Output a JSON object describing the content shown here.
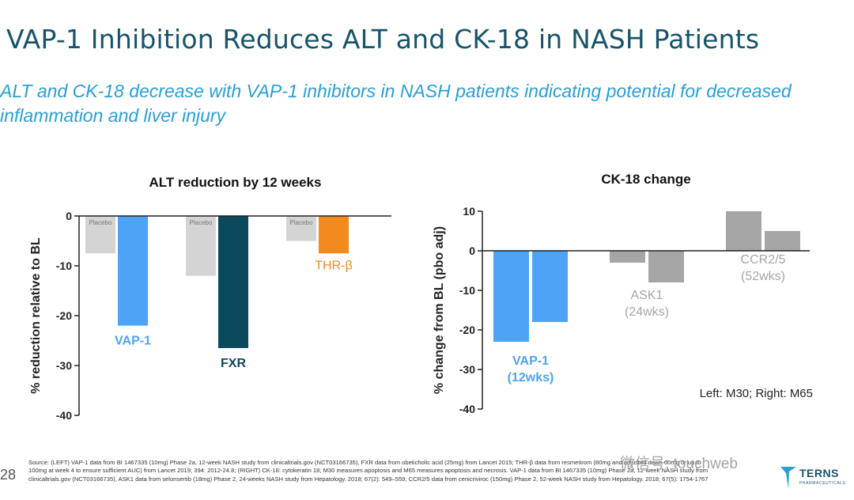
{
  "slide": {
    "title": "VAP-1 Inhibition Reduces ALT and CK-18 in NASH Patients",
    "subtitle": "ALT and CK-18 decrease with VAP-1 inhibitors in NASH patients indicating potential for decreased inflammation and liver injury",
    "page_number": "28",
    "source": "Source: (LEFT) VAP-1 data from BI 1467335 (10mg) Phase 2a, 12-week NASH study from clinicaltrials.gov (NCT03166735), FXR data from obeticholic acid (25mg) from Lancet 2015; THR-β data from resmetirom (80mg and adjusted down 60mg or up to 100mg at week 4 to ensure sufficient AUC) from Lancet 2019; 394: 2012-24.8; (RIGHT) CK-18: cytokeratin 18; M30 measures apoptosis and M65 measures apoptosis and necrosis. VAP-1 data from BI 1467335 (10mg) Phase 2a, 12-week NASH study from clinicaltrials.gov (NCT03166735), ASK1 data from selonsertib (18mg) Phase 2, 24-weeks NASH study from Hepatology. 2018; 67(2): 549–559; CCR2/5 data from cenicriviroc (150mg) Phase 2, 52-week NASH study from Hepatology. 2018; 67(5): 1754-1767",
    "watermark": "微信号: touchweb",
    "logo_name": "TERNS",
    "logo_sub": "PHARMACEUTICALS"
  },
  "colors": {
    "title": "#17546b",
    "subtitle": "#2a9fd6",
    "vap1": "#4da3f5",
    "fxr": "#0b4a5c",
    "thr": "#f28a1e",
    "placebo": "#d4d4d4",
    "grey_bar": "#a6a6a6",
    "grey_label": "#a6a6a6"
  },
  "chart_data": [
    {
      "type": "bar",
      "title": "ALT reduction by 12 weeks",
      "ylabel": "% reduction relative to BL",
      "ylim": [
        -40,
        0
      ],
      "yticks": [
        0,
        -10,
        -20,
        -30,
        -40
      ],
      "grid": false,
      "groups": [
        {
          "label": "VAP-1",
          "label_color": "#4da3f5",
          "bars": [
            {
              "name": "Placebo",
              "value": -7.5,
              "color": "#d4d4d4"
            },
            {
              "name": "VAP-1",
              "value": -22,
              "color": "#4da3f5"
            }
          ]
        },
        {
          "label": "FXR",
          "label_color": "#0b4a5c",
          "bars": [
            {
              "name": "Placebo",
              "value": -12,
              "color": "#d4d4d4"
            },
            {
              "name": "FXR",
              "value": -26.5,
              "color": "#0b4a5c"
            }
          ]
        },
        {
          "label": "THR-β",
          "label_color": "#f28a1e",
          "bars": [
            {
              "name": "Placebo",
              "value": -5,
              "color": "#d4d4d4"
            },
            {
              "name": "THR-β",
              "value": -7.5,
              "color": "#f28a1e"
            }
          ]
        }
      ],
      "placebo_label": "Placebo"
    },
    {
      "type": "bar",
      "title": "CK-18 change",
      "ylabel": "% change from BL (pbo adj)",
      "ylim": [
        -40,
        10
      ],
      "yticks": [
        10,
        0,
        -10,
        -20,
        -30,
        -40
      ],
      "grid": false,
      "annotation": "Left: M30; Right: M65",
      "groups": [
        {
          "label_lines": [
            "VAP-1",
            "(12wks)"
          ],
          "label_color": "#4da3f5",
          "bars": [
            {
              "name": "M30",
              "value": -23,
              "color": "#4da3f5"
            },
            {
              "name": "M65",
              "value": -18,
              "color": "#4da3f5"
            }
          ]
        },
        {
          "label_lines": [
            "ASK1",
            "(24wks)"
          ],
          "label_color": "#a6a6a6",
          "bars": [
            {
              "name": "M30",
              "value": -3,
              "color": "#a6a6a6"
            },
            {
              "name": "M65",
              "value": -8,
              "color": "#a6a6a6"
            }
          ]
        },
        {
          "label_lines": [
            "CCR2/5",
            "(52wks)"
          ],
          "label_color": "#a6a6a6",
          "bars": [
            {
              "name": "M30",
              "value": 10,
              "color": "#a6a6a6"
            },
            {
              "name": "M65",
              "value": 5,
              "color": "#a6a6a6"
            }
          ]
        }
      ]
    }
  ]
}
